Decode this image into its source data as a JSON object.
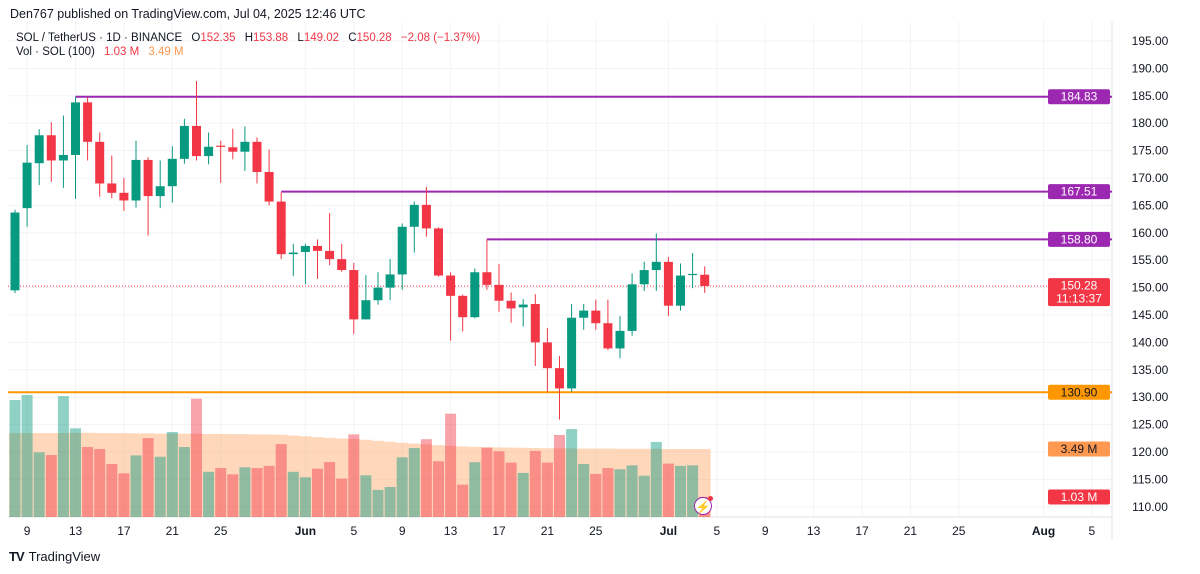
{
  "published": "Den767 published on TradingView.com, Jul 04, 2025 12:46 UTC",
  "legend": {
    "symbol": "SOL / TetherUS · 1D · BINANCE",
    "open_label": "O",
    "open": "152.35",
    "high_label": "H",
    "high": "153.88",
    "low_label": "L",
    "low": "149.02",
    "close_label": "C",
    "close": "150.28",
    "change": "−2.08 (−1.37%)",
    "vol_title": "Vol · SOL (100)",
    "vol_value": "1.03 M",
    "vol_ma": "3.49 M"
  },
  "footer": {
    "logo_text": "TradingView"
  },
  "colors": {
    "up": "#089981",
    "down": "#f23645",
    "level_purple": "#9c27b0",
    "level_orange": "#ff9800",
    "vol_ma": "#ff9850"
  },
  "chart_data": {
    "type": "candlestick",
    "ylim": [
      108,
      197
    ],
    "y_ticks": [
      195,
      190,
      185,
      180,
      175,
      170,
      165,
      160,
      155,
      150,
      145,
      140,
      135,
      130,
      125,
      120,
      115,
      110
    ],
    "x_range": [
      "2025-05-07",
      "2025-08-08"
    ],
    "x_ticks": [
      {
        "label": "9",
        "date": "2025-05-09"
      },
      {
        "label": "13",
        "date": "2025-05-13"
      },
      {
        "label": "17",
        "date": "2025-05-17"
      },
      {
        "label": "21",
        "date": "2025-05-21"
      },
      {
        "label": "25",
        "date": "2025-05-25"
      },
      {
        "label": "Jun",
        "date": "2025-06-01",
        "bold": true
      },
      {
        "label": "5",
        "date": "2025-06-05"
      },
      {
        "label": "9",
        "date": "2025-06-09"
      },
      {
        "label": "13",
        "date": "2025-06-13"
      },
      {
        "label": "17",
        "date": "2025-06-17"
      },
      {
        "label": "21",
        "date": "2025-06-21"
      },
      {
        "label": "25",
        "date": "2025-06-25"
      },
      {
        "label": "Jul",
        "date": "2025-07-01",
        "bold": true
      },
      {
        "label": "5",
        "date": "2025-07-05"
      },
      {
        "label": "9",
        "date": "2025-07-09"
      },
      {
        "label": "13",
        "date": "2025-07-13"
      },
      {
        "label": "17",
        "date": "2025-07-17"
      },
      {
        "label": "21",
        "date": "2025-07-21"
      },
      {
        "label": "25",
        "date": "2025-07-25"
      },
      {
        "label": "Aug",
        "date": "2025-08-01",
        "bold": true
      },
      {
        "label": "5",
        "date": "2025-08-05"
      }
    ],
    "candle_fields": [
      "date",
      "open",
      "high",
      "low",
      "close",
      "volume_M",
      "volume_ma_M"
    ],
    "candles": [
      [
        "2025-05-08",
        149.5,
        164.2,
        149.0,
        163.7,
        6.0,
        4.3
      ],
      [
        "2025-05-09",
        164.5,
        176.0,
        161.1,
        172.8,
        6.26,
        4.3
      ],
      [
        "2025-05-10",
        172.7,
        178.9,
        168.7,
        177.8,
        3.32,
        4.31
      ],
      [
        "2025-05-11",
        177.8,
        180.2,
        169.3,
        173.2,
        3.18,
        4.31
      ],
      [
        "2025-05-12",
        173.2,
        181.4,
        168.2,
        174.2,
        6.2,
        4.31
      ],
      [
        "2025-05-13",
        174.2,
        184.8,
        166.2,
        183.8,
        4.55,
        4.32
      ],
      [
        "2025-05-14",
        183.8,
        184.7,
        173.2,
        176.6,
        3.59,
        4.32
      ],
      [
        "2025-05-15",
        176.6,
        178.3,
        166.6,
        169.0,
        3.49,
        4.31
      ],
      [
        "2025-05-16",
        169.0,
        174.1,
        166.3,
        167.3,
        2.72,
        4.3
      ],
      [
        "2025-05-17",
        167.3,
        170.0,
        164.0,
        165.9,
        2.24,
        4.3
      ],
      [
        "2025-05-18",
        165.9,
        176.8,
        164.6,
        173.3,
        3.16,
        4.29
      ],
      [
        "2025-05-19",
        173.3,
        173.8,
        159.5,
        166.7,
        4.05,
        4.29
      ],
      [
        "2025-05-20",
        166.7,
        173.2,
        164.5,
        168.5,
        3.09,
        4.28
      ],
      [
        "2025-05-21",
        168.5,
        175.8,
        165.5,
        173.5,
        4.36,
        4.28
      ],
      [
        "2025-05-22",
        173.5,
        180.8,
        172.6,
        179.5,
        3.59,
        4.27
      ],
      [
        "2025-05-23",
        179.5,
        187.7,
        173.2,
        174.0,
        6.07,
        4.27
      ],
      [
        "2025-05-24",
        174.0,
        178.3,
        172.5,
        175.7,
        2.32,
        4.26
      ],
      [
        "2025-05-25",
        175.9,
        176.8,
        169.1,
        175.7,
        2.51,
        4.26
      ],
      [
        "2025-05-26",
        175.6,
        179.0,
        173.4,
        174.8,
        2.19,
        4.25
      ],
      [
        "2025-05-27",
        174.8,
        179.4,
        171.3,
        176.6,
        2.55,
        4.25
      ],
      [
        "2025-05-28",
        176.6,
        177.4,
        169.0,
        171.1,
        2.51,
        4.24
      ],
      [
        "2025-05-29",
        171.1,
        175.2,
        165.0,
        165.7,
        2.62,
        4.23
      ],
      [
        "2025-05-30",
        165.7,
        167.4,
        155.2,
        156.1,
        3.74,
        4.22
      ],
      [
        "2025-05-31",
        156.1,
        158.0,
        152.1,
        156.4,
        2.32,
        4.18
      ],
      [
        "2025-06-01",
        156.5,
        158.0,
        150.6,
        157.6,
        2.04,
        4.14
      ],
      [
        "2025-06-02",
        157.6,
        158.8,
        151.6,
        156.7,
        2.48,
        4.1
      ],
      [
        "2025-06-03",
        156.7,
        163.6,
        154.1,
        155.2,
        2.82,
        4.06
      ],
      [
        "2025-06-04",
        155.2,
        158.0,
        152.9,
        153.2,
        1.97,
        4.03
      ],
      [
        "2025-06-05",
        153.2,
        154.5,
        141.5,
        144.2,
        4.24,
        4.0
      ],
      [
        "2025-06-06",
        144.2,
        152.3,
        144.2,
        147.7,
        2.14,
        3.96
      ],
      [
        "2025-06-07",
        147.7,
        152.8,
        146.9,
        150.0,
        1.39,
        3.91
      ],
      [
        "2025-06-08",
        150.0,
        155.2,
        147.7,
        152.4,
        1.54,
        3.86
      ],
      [
        "2025-06-09",
        152.4,
        161.7,
        149.6,
        161.1,
        3.06,
        3.81
      ],
      [
        "2025-06-10",
        161.1,
        165.7,
        156.4,
        165.1,
        3.54,
        3.77
      ],
      [
        "2025-06-11",
        165.1,
        168.4,
        159.3,
        160.8,
        3.99,
        3.73
      ],
      [
        "2025-06-12",
        160.8,
        161.0,
        152.0,
        152.2,
        2.86,
        3.69
      ],
      [
        "2025-06-13",
        152.2,
        152.8,
        140.3,
        148.5,
        5.3,
        3.65
      ],
      [
        "2025-06-14",
        148.5,
        148.7,
        142.0,
        144.6,
        1.66,
        3.62
      ],
      [
        "2025-06-15",
        144.6,
        153.5,
        144.4,
        152.8,
        2.81,
        3.6
      ],
      [
        "2025-06-16",
        152.8,
        158.8,
        149.6,
        150.5,
        3.56,
        3.58
      ],
      [
        "2025-06-17",
        150.5,
        154.3,
        145.6,
        147.6,
        3.37,
        3.57
      ],
      [
        "2025-06-18",
        147.6,
        149.1,
        143.6,
        146.2,
        2.79,
        3.56
      ],
      [
        "2025-06-19",
        146.4,
        147.9,
        142.9,
        146.9,
        2.26,
        3.55
      ],
      [
        "2025-06-20",
        147.0,
        148.8,
        135.7,
        140.0,
        3.39,
        3.54
      ],
      [
        "2025-06-21",
        140.0,
        142.6,
        131.0,
        135.3,
        2.79,
        3.53
      ],
      [
        "2025-06-22",
        135.3,
        137.5,
        125.9,
        131.6,
        4.21,
        3.52
      ],
      [
        "2025-06-23",
        131.6,
        147.0,
        131.0,
        144.5,
        4.51,
        3.52
      ],
      [
        "2025-06-24",
        144.5,
        147.0,
        142.3,
        145.8,
        2.72,
        3.51
      ],
      [
        "2025-06-25",
        145.8,
        147.8,
        142.3,
        143.5,
        2.21,
        3.51
      ],
      [
        "2025-06-26",
        143.5,
        147.8,
        138.6,
        138.9,
        2.51,
        3.51
      ],
      [
        "2025-06-27",
        138.9,
        144.8,
        137.1,
        142.1,
        2.45,
        3.5
      ],
      [
        "2025-06-28",
        142.1,
        152.6,
        141.2,
        150.6,
        2.65,
        3.5
      ],
      [
        "2025-06-29",
        150.6,
        154.7,
        149.4,
        153.2,
        2.12,
        3.5
      ],
      [
        "2025-06-30",
        153.2,
        159.9,
        149.4,
        154.7,
        3.85,
        3.5
      ],
      [
        "2025-07-01",
        154.7,
        155.6,
        144.8,
        146.7,
        2.74,
        3.49
      ],
      [
        "2025-07-02",
        146.7,
        154.4,
        145.8,
        152.2,
        2.62,
        3.49
      ],
      [
        "2025-07-03",
        152.3,
        156.3,
        149.9,
        152.5,
        2.65,
        3.49
      ],
      [
        "2025-07-04",
        152.35,
        153.88,
        149.02,
        150.28,
        1.03,
        3.49
      ]
    ],
    "levels": [
      {
        "price": 184.83,
        "label": "184.83",
        "color": "#9c27b0",
        "from": "2025-05-13"
      },
      {
        "price": 167.51,
        "label": "167.51",
        "color": "#9c27b0",
        "from": "2025-05-30"
      },
      {
        "price": 158.8,
        "label": "158.80",
        "color": "#9c27b0",
        "from": "2025-06-16"
      },
      {
        "price": 130.9,
        "label": "130.90",
        "color": "#ff9800",
        "from": null
      }
    ],
    "last_price": {
      "price": 150.28,
      "label": "150.28",
      "countdown": "11:13:37"
    },
    "volume_tags": [
      {
        "label": "3.49 M",
        "value": 3.49,
        "kind": "ma"
      },
      {
        "label": "1.03 M",
        "value": 1.03,
        "kind": "volume"
      }
    ]
  }
}
